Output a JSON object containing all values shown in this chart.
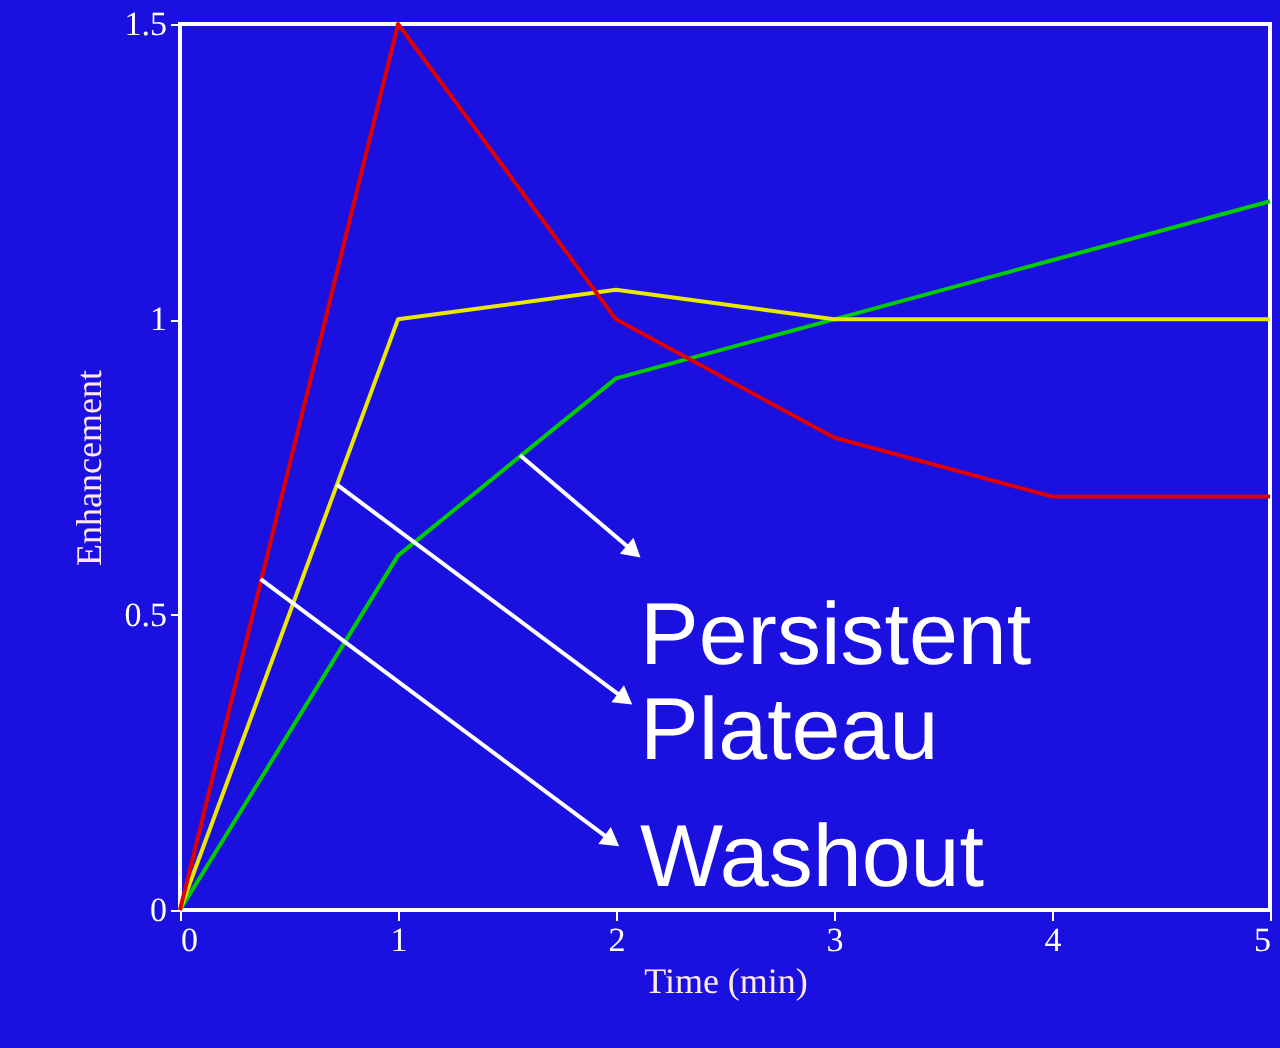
{
  "chart_data": {
    "type": "line",
    "xlabel": "Time (min)",
    "ylabel": "Enhancement",
    "x": [
      0,
      1,
      2,
      3,
      4,
      5
    ],
    "xlim": [
      0,
      5
    ],
    "xticks": [
      0,
      1,
      2,
      3,
      4,
      5
    ],
    "ylim": [
      0,
      1.5
    ],
    "yticks": [
      0,
      0.5,
      1,
      1.5
    ],
    "series": [
      {
        "color": "#00cc00",
        "values": [
          0,
          0.6,
          0.9,
          1.0,
          1.1,
          1.2
        ]
      },
      {
        "color": "#e8e800",
        "values": [
          0,
          1.0,
          1.05,
          1.0,
          1.0,
          1.0
        ]
      },
      {
        "color": "#e00000",
        "values": [
          0,
          1.5,
          1.0,
          0.8,
          0.7,
          0.7
        ]
      }
    ],
    "annotations": [
      {
        "text": "Persistent",
        "x": 1.56,
        "y": 0.77
      },
      {
        "text": "Plateau",
        "x": 0.72,
        "y": 0.72
      },
      {
        "text": "Washout",
        "x": 0.37,
        "y": 0.56
      }
    ],
    "grid": false,
    "marker": "none",
    "line_style": "solid"
  }
}
